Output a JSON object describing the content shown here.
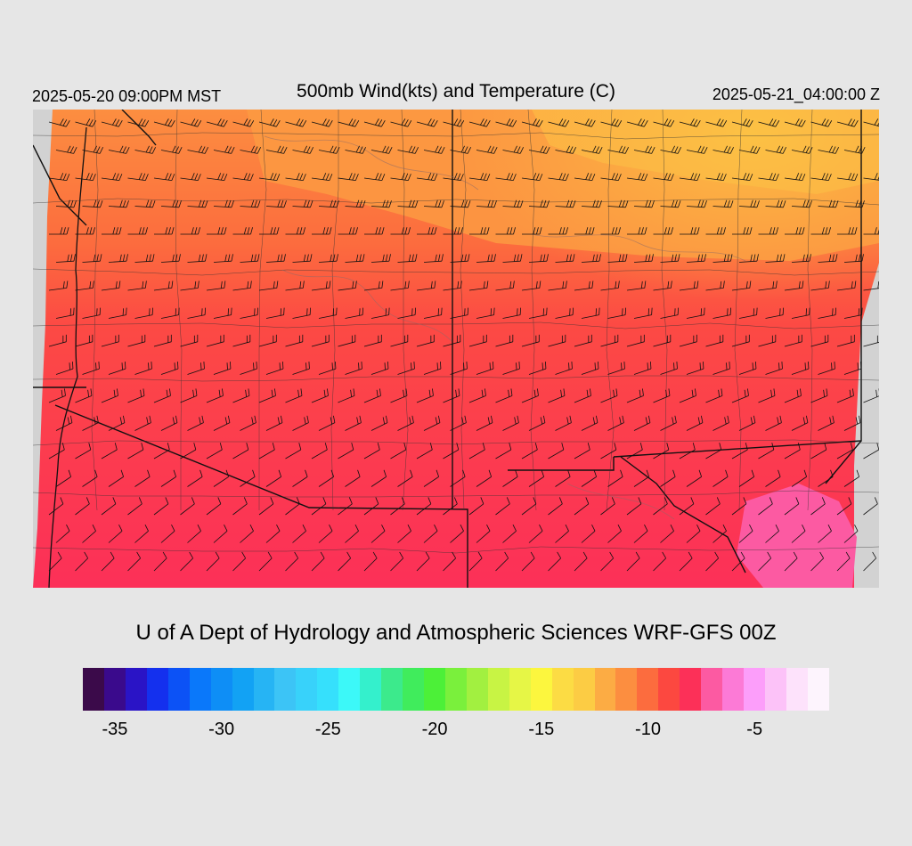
{
  "header": {
    "local_time": "2025-05-20 09:00PM MST",
    "title": "500mb Wind(kts) and Temperature (C)",
    "valid_time": "2025-05-21_04:00:00 Z"
  },
  "footer": {
    "credit": "U of A Dept of Hydrology and Atmospheric Sciences WRF-GFS 00Z"
  },
  "colorbar": {
    "colors": [
      "#3b0a4a",
      "#3a0a8c",
      "#2a14c6",
      "#1430ee",
      "#0c52f6",
      "#0a78fa",
      "#0e8ef6",
      "#12a2f4",
      "#26b4f4",
      "#3cc4f6",
      "#38d2fa",
      "#36e0fc",
      "#3cf8f8",
      "#34f0cc",
      "#3cea8c",
      "#40ec5c",
      "#4cf038",
      "#7af03c",
      "#a2f040",
      "#c8f444",
      "#e6f646",
      "#fcf63e",
      "#fcdc44",
      "#fccc44",
      "#fcac44",
      "#fc8e40",
      "#fc6c3e",
      "#fc4840",
      "#fc3058",
      "#fc5aa2",
      "#fc7ad6",
      "#fc9efa",
      "#fcc2f8",
      "#fde2fb",
      "#fdf4fd"
    ],
    "tick_labels": [
      "-35",
      "-30",
      "-25",
      "-20",
      "-15",
      "-10",
      "-5"
    ],
    "tick_values": [
      -35,
      -30,
      -25,
      -20,
      -15,
      -10,
      -5
    ],
    "min": -36,
    "max": -1
  },
  "map": {
    "field": "500mb temperature (C) with wind barbs (kts)",
    "temperature_zones": [
      {
        "region": "north",
        "color": "#fc9540"
      },
      {
        "region": "northeast",
        "color": "#fcb444"
      },
      {
        "region": "central",
        "color": "#fc6c3e"
      },
      {
        "region": "south-central",
        "color": "#fc4848"
      },
      {
        "region": "southwest",
        "color": "#fc3058"
      },
      {
        "region": "southeast-patch",
        "color": "#fc5aa2"
      }
    ]
  }
}
